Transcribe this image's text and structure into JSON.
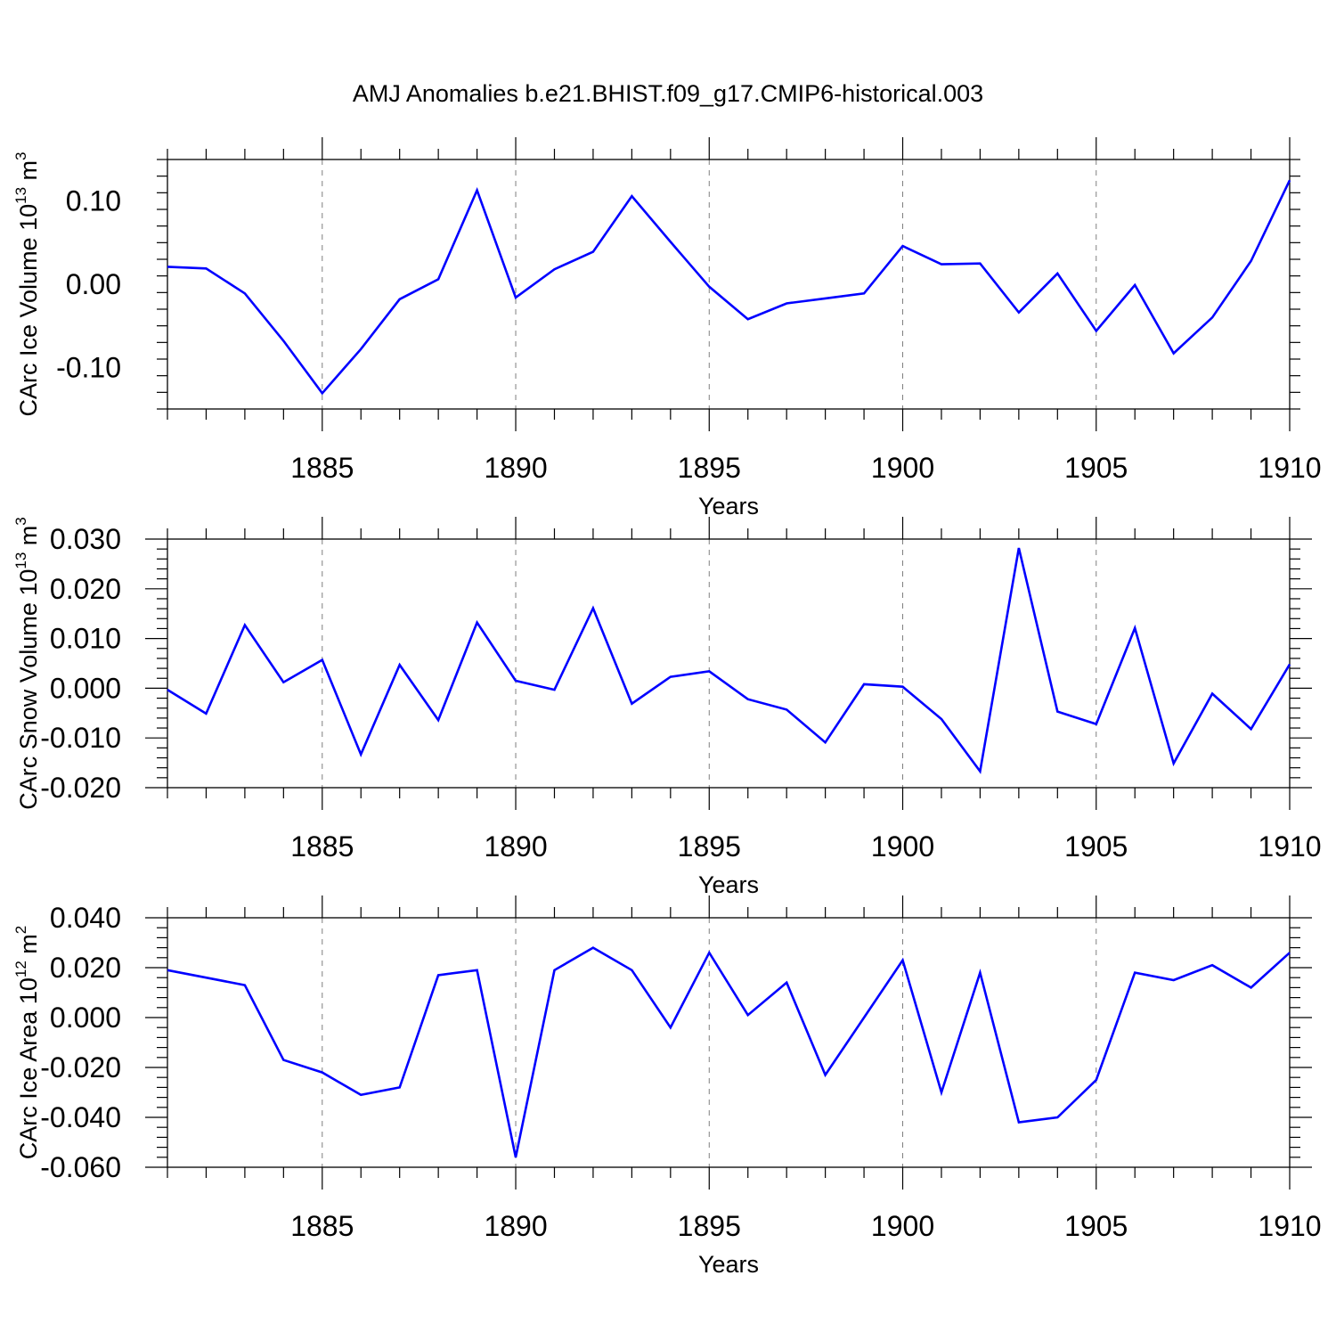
{
  "title": "AMJ Anomalies b.e21.BHIST.f09_g17.CMIP6-historical.003",
  "colors": {
    "line": "#0000ff",
    "axis": "#000000",
    "grid": "#7f7f7f"
  },
  "chart_data": [
    {
      "type": "line",
      "ylabel_main": "CArc Ice Volume 10",
      "ylabel_exp": "13",
      "ylabel_unit": "m",
      "ylabel_unit_exp": "3",
      "xlabel": "Years",
      "xlim": [
        1881,
        1910
      ],
      "ylim": [
        -0.15,
        0.15
      ],
      "yticks": [
        -0.1,
        0.0,
        0.1
      ],
      "ytick_labels": [
        "-0.10",
        "0.00",
        "0.10"
      ],
      "xticks": [
        1885,
        1890,
        1895,
        1900,
        1905,
        1910
      ],
      "xtick_labels": [
        "1885",
        "1890",
        "1895",
        "1900",
        "1905",
        "1910"
      ],
      "grid": "dashed vertical at major x ticks",
      "x": [
        1881,
        1882,
        1883,
        1884,
        1885,
        1886,
        1887,
        1888,
        1889,
        1890,
        1891,
        1892,
        1893,
        1894,
        1895,
        1896,
        1897,
        1898,
        1899,
        1900,
        1901,
        1902,
        1903,
        1904,
        1905,
        1906,
        1907,
        1908,
        1909,
        1910
      ],
      "values": [
        0.021,
        0.019,
        -0.011,
        -0.068,
        -0.131,
        -0.078,
        -0.018,
        0.006,
        0.113,
        -0.016,
        0.018,
        0.039,
        0.106,
        0.051,
        -0.003,
        -0.042,
        -0.023,
        -0.017,
        -0.011,
        0.046,
        0.024,
        0.025,
        -0.034,
        0.013,
        -0.056,
        -0.001,
        -0.083,
        -0.04,
        0.028,
        0.125
      ]
    },
    {
      "type": "line",
      "ylabel_main": "CArc Snow Volume 10",
      "ylabel_exp": "13",
      "ylabel_unit": "m",
      "ylabel_unit_exp": "3",
      "xlabel": "Years",
      "xlim": [
        1881,
        1910
      ],
      "ylim": [
        -0.02,
        0.03
      ],
      "yticks": [
        -0.02,
        -0.01,
        0.0,
        0.01,
        0.02,
        0.03
      ],
      "ytick_labels": [
        "-0.020",
        "-0.010",
        "0.000",
        "0.010",
        "0.020",
        "0.030"
      ],
      "xticks": [
        1885,
        1890,
        1895,
        1900,
        1905,
        1910
      ],
      "xtick_labels": [
        "1885",
        "1890",
        "1895",
        "1900",
        "1905",
        "1910"
      ],
      "grid": "dashed vertical at major x ticks",
      "x": [
        1881,
        1882,
        1883,
        1884,
        1885,
        1886,
        1887,
        1888,
        1889,
        1890,
        1891,
        1892,
        1893,
        1894,
        1895,
        1896,
        1897,
        1898,
        1899,
        1900,
        1901,
        1902,
        1903,
        1904,
        1905,
        1906,
        1907,
        1908,
        1909,
        1910
      ],
      "values": [
        -0.0003,
        -0.0051,
        0.0127,
        0.0012,
        0.0057,
        -0.0133,
        0.0047,
        -0.0064,
        0.0132,
        0.0015,
        -0.0003,
        0.0161,
        -0.0031,
        0.0023,
        0.0034,
        -0.0022,
        -0.0043,
        -0.0109,
        0.0008,
        0.0003,
        -0.0062,
        -0.0167,
        0.0282,
        -0.0047,
        -0.0072,
        0.0121,
        -0.0151,
        -0.0011,
        -0.0082,
        0.0048
      ]
    },
    {
      "type": "line",
      "ylabel_main": "CArc Ice Area 10",
      "ylabel_exp": "12",
      "ylabel_unit": "m",
      "ylabel_unit_exp": "2",
      "xlabel": "Years",
      "xlim": [
        1881,
        1910
      ],
      "ylim": [
        -0.06,
        0.04
      ],
      "yticks": [
        -0.06,
        -0.04,
        -0.02,
        0.0,
        0.02,
        0.04
      ],
      "ytick_labels": [
        "-0.060",
        "-0.040",
        "-0.020",
        "0.000",
        "0.020",
        "0.040"
      ],
      "xticks": [
        1885,
        1890,
        1895,
        1900,
        1905,
        1910
      ],
      "xtick_labels": [
        "1885",
        "1890",
        "1895",
        "1900",
        "1905",
        "1910"
      ],
      "grid": "dashed vertical at major x ticks",
      "x": [
        1881,
        1882,
        1883,
        1884,
        1885,
        1886,
        1887,
        1888,
        1889,
        1890,
        1891,
        1892,
        1893,
        1894,
        1895,
        1896,
        1897,
        1898,
        1899,
        1900,
        1901,
        1902,
        1903,
        1904,
        1905,
        1906,
        1907,
        1908,
        1909,
        1910
      ],
      "values": [
        0.019,
        0.016,
        0.013,
        -0.017,
        -0.022,
        -0.031,
        -0.028,
        0.017,
        0.019,
        -0.056,
        0.019,
        0.028,
        0.019,
        -0.004,
        0.026,
        0.001,
        0.014,
        -0.023,
        0.0,
        0.023,
        -0.03,
        0.018,
        -0.042,
        -0.04,
        -0.025,
        0.018,
        0.015,
        0.021,
        0.012,
        0.026
      ]
    }
  ]
}
